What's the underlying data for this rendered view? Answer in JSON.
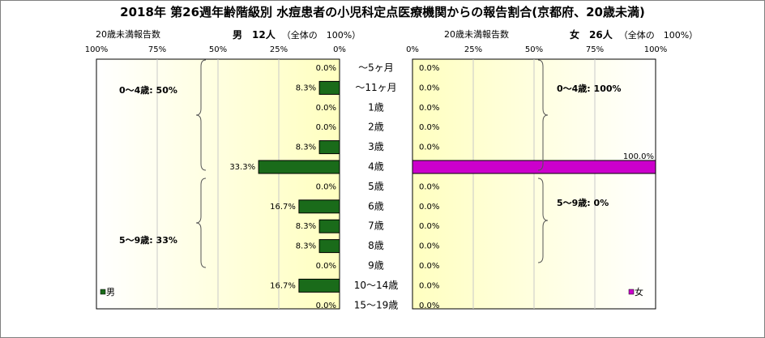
{
  "title": "2018年 第26週年齢階級別 水痘患者の小児科定点医療機関からの報告割合(京都府、20歳未満)",
  "chart_data": [
    {
      "type": "bar",
      "panel": "male",
      "axis_title": "20歳未満報告数",
      "header": "男　12人",
      "header_note": "（全体の　100%）",
      "xlim": [
        0,
        100
      ],
      "ticks": [
        "100%",
        "75%",
        "50%",
        "25%",
        "0%"
      ],
      "tick_values": [
        100,
        75,
        50,
        25,
        0
      ],
      "categories": [
        "～5ヶ月",
        "～11ヶ月",
        "1歳",
        "2歳",
        "3歳",
        "4歳",
        "5歳",
        "6歳",
        "7歳",
        "8歳",
        "9歳",
        "10～14歳",
        "15～19歳"
      ],
      "values": [
        0.0,
        8.3,
        0.0,
        0.0,
        8.3,
        33.3,
        0.0,
        16.7,
        8.3,
        8.3,
        0.0,
        16.7,
        0.0
      ],
      "labels": [
        "0.0%",
        "8.3%",
        "0.0%",
        "0.0%",
        "8.3%",
        "33.3%",
        "0.0%",
        "16.7%",
        "8.3%",
        "8.3%",
        "0.0%",
        "16.7%",
        "0.0%"
      ],
      "group_labels": [
        "0～4歳: 50%",
        "5～9歳: 33%"
      ],
      "legend": "男",
      "color": "#1a6b1a"
    },
    {
      "type": "bar",
      "panel": "female",
      "axis_title": "20歳未満報告数",
      "header": "女　26人",
      "header_note": "（全体の　100%）",
      "xlim": [
        0,
        100
      ],
      "ticks": [
        "0%",
        "25%",
        "50%",
        "75%",
        "100%"
      ],
      "tick_values": [
        0,
        25,
        50,
        75,
        100
      ],
      "categories": [
        "～5ヶ月",
        "～11ヶ月",
        "1歳",
        "2歳",
        "3歳",
        "4歳",
        "5歳",
        "6歳",
        "7歳",
        "8歳",
        "9歳",
        "10～14歳",
        "15～19歳"
      ],
      "values": [
        0.0,
        0.0,
        0.0,
        0.0,
        0.0,
        100.0,
        0.0,
        0.0,
        0.0,
        0.0,
        0.0,
        0.0,
        0.0
      ],
      "labels": [
        "0.0%",
        "0.0%",
        "0.0%",
        "0.0%",
        "0.0%",
        "100.0%",
        "0.0%",
        "0.0%",
        "0.0%",
        "0.0%",
        "0.0%",
        "0.0%",
        "0.0%"
      ],
      "group_labels": [
        "0～4歳: 100%",
        "5～9歳: 0%"
      ],
      "legend": "女",
      "color": "#cc00cc"
    }
  ]
}
